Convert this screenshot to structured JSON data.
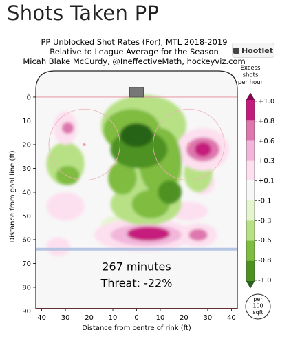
{
  "page_title": "Shots Taken PP",
  "header": {
    "line1": "PP Unblocked Shot Rates (For), MTL 2018-2019",
    "line2": "Relative to League Average for the Season",
    "line3": "Micah Blake McCurdy, @IneffectiveMath, hockeyviz.com"
  },
  "logo_text": "Hootlet",
  "chart_data": {
    "type": "heatmap",
    "xlabel": "Distance from centre of rink (ft)",
    "ylabel": "Distance from goal line (ft)",
    "x_ticks": [
      40,
      30,
      20,
      10,
      0,
      10,
      20,
      30,
      40
    ],
    "y_ticks": [
      0,
      10,
      20,
      30,
      40,
      50,
      60,
      70,
      80,
      90
    ],
    "xlim": [
      -42.5,
      42.5
    ],
    "ylim": [
      -11,
      89
    ],
    "annotations": {
      "minutes": "267 minutes",
      "threat": "Threat: -22%"
    },
    "colorbar": {
      "title": [
        "Excess",
        "shots",
        "per hour"
      ],
      "labels": [
        "+1.0",
        "+0.8",
        "+0.6",
        "+0.3",
        "+0.1",
        "-0.1",
        "-0.3",
        "-0.6",
        "-0.8",
        "-1.0"
      ],
      "colors": [
        "#8e0152",
        "#c51b7d",
        "#de77ae",
        "#f1b6da",
        "#fde0ef",
        "#f7f7f7",
        "#e6f5d0",
        "#b8e186",
        "#7fbc41",
        "#4d9221",
        "#276419"
      ],
      "unit_badge": [
        "per",
        "100",
        "sqft"
      ]
    },
    "blobs": [
      {
        "x": 3,
        "y": 12,
        "rx": 18,
        "ry": 13,
        "level": 0.3
      },
      {
        "x": -2,
        "y": 14,
        "rx": 12,
        "ry": 9,
        "level": 0.55
      },
      {
        "x": 1,
        "y": 22,
        "rx": 12,
        "ry": 8,
        "level": 0.75
      },
      {
        "x": 0,
        "y": 16,
        "rx": 7,
        "ry": 5,
        "level": 0.9
      },
      {
        "x": 0,
        "y": 20,
        "rx": 3,
        "ry": 2,
        "level": 0.1
      },
      {
        "x": 10,
        "y": 27,
        "rx": 9,
        "ry": 14,
        "level": 0.55
      },
      {
        "x": 5,
        "y": 32,
        "rx": 14,
        "ry": 11,
        "level": 0.4
      },
      {
        "x": -6,
        "y": 34,
        "rx": 6,
        "ry": 7,
        "level": 0.55
      },
      {
        "x": 4,
        "y": 45,
        "rx": 15,
        "ry": 9,
        "level": 0.35
      },
      {
        "x": 6,
        "y": 45,
        "rx": 8,
        "ry": 6,
        "level": 0.55
      },
      {
        "x": 14,
        "y": 40,
        "rx": 5,
        "ry": 5,
        "level": 0.7
      },
      {
        "x": -30,
        "y": 28,
        "rx": 8,
        "ry": 9,
        "level": 0.3
      },
      {
        "x": -29,
        "y": 33,
        "rx": 5,
        "ry": 4,
        "level": 0.55
      },
      {
        "x": 26,
        "y": 32,
        "rx": 6,
        "ry": 8,
        "level": 0.3
      },
      {
        "x": -8,
        "y": 54,
        "rx": 7,
        "ry": 4,
        "level": 0.25
      },
      {
        "x": -30,
        "y": 13,
        "rx": 5,
        "ry": 7,
        "level": -0.3
      },
      {
        "x": -29,
        "y": 13,
        "rx": 2.5,
        "ry": 2.5,
        "level": -0.6
      },
      {
        "x": 28,
        "y": 22,
        "rx": 11,
        "ry": 9,
        "level": -0.3
      },
      {
        "x": 28,
        "y": 22,
        "rx": 7,
        "ry": 5,
        "level": -0.6
      },
      {
        "x": 28,
        "y": 22,
        "rx": 3.5,
        "ry": 3,
        "level": -0.85
      },
      {
        "x": 3,
        "y": 58,
        "rx": 21,
        "ry": 7,
        "level": -0.25
      },
      {
        "x": 4,
        "y": 58,
        "rx": 15,
        "ry": 4.5,
        "level": -0.5
      },
      {
        "x": 5,
        "y": 57.5,
        "rx": 9,
        "ry": 3,
        "level": -0.8
      },
      {
        "x": 26,
        "y": 58,
        "rx": 8,
        "ry": 5,
        "level": -0.3
      },
      {
        "x": 26,
        "y": 58,
        "rx": 4,
        "ry": 2.5,
        "level": -0.6
      },
      {
        "x": -30,
        "y": 46,
        "rx": 8,
        "ry": 6,
        "level": -0.15
      },
      {
        "x": 22,
        "y": 48,
        "rx": 8,
        "ry": 4,
        "level": -0.15
      },
      {
        "x": -33,
        "y": 63,
        "rx": 5,
        "ry": 4,
        "level": -0.12
      },
      {
        "x": 28,
        "y": 36,
        "rx": 5,
        "ry": 5,
        "level": -0.12
      }
    ]
  }
}
